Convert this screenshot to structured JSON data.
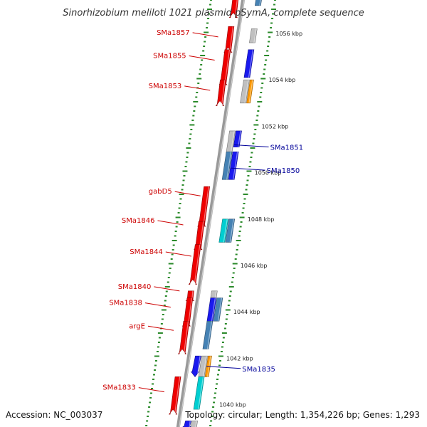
{
  "title": "Sinorhizobium meliloti 1021 plasmid pSymA, complete sequence",
  "footer": {
    "accession": "Accession: NC_003037",
    "topology": "Topology: circular; Length: 1,354,226 bp; Genes: 1,293"
  },
  "colors": {
    "forward_label": "#cc0000",
    "reverse_label": "#000099",
    "tick": "#2a8a2a",
    "backbone": "#999999",
    "red": "#ee0000",
    "blue": "#1a1aee",
    "steel": "#4682b4",
    "gray": "#c0c0c0",
    "cyan": "#00ced1",
    "orange": "#ff9900"
  },
  "ruler": [
    {
      "kbp": 1056,
      "label": "1056 kbp"
    },
    {
      "kbp": 1054,
      "label": "1054 kbp"
    },
    {
      "kbp": 1052,
      "label": "1052 kbp"
    },
    {
      "kbp": 1050,
      "label": "1050 kbp"
    },
    {
      "kbp": 1048,
      "label": "1048 kbp"
    },
    {
      "kbp": 1046,
      "label": "1046 kbp"
    },
    {
      "kbp": 1044,
      "label": "1044 kbp"
    },
    {
      "kbp": 1042,
      "label": "1042 kbp"
    },
    {
      "kbp": 1040,
      "label": "1040 kbp"
    }
  ],
  "genes": [
    {
      "strand": "+",
      "start": 1057.6,
      "end": 1056.9,
      "color": "red",
      "track": 0,
      "label": ""
    },
    {
      "strand": "-",
      "start": 1057.5,
      "end": 1057.2,
      "color": "steel",
      "track": 1,
      "label": ""
    },
    {
      "strand": "+",
      "start": 1056.3,
      "end": 1055.4,
      "color": "red",
      "track": 0,
      "label": ""
    },
    {
      "strand": "-",
      "start": 1056.2,
      "end": 1055.6,
      "color": "gray",
      "track": 1,
      "label": "SMa1857",
      "labelKbp": 1055.85
    },
    {
      "strand": "+",
      "start": 1055.3,
      "end": 1054.0,
      "color": "red",
      "track": 0,
      "label": ""
    },
    {
      "strand": "-",
      "start": 1055.3,
      "end": 1054.1,
      "color": "blue",
      "track": 1,
      "label": "SMa1855",
      "labelKbp": 1054.85
    },
    {
      "strand": "+",
      "start": 1054.0,
      "end": 1053.1,
      "color": "red",
      "track": 0,
      "label": ""
    },
    {
      "strand": "-",
      "start": 1054.0,
      "end": 1053.0,
      "color": "gray",
      "track": 1,
      "label": "SMa1853",
      "labelKbp": 1053.55
    },
    {
      "strand": "-",
      "start": 1054.0,
      "end": 1053.0,
      "color": "orange",
      "track": 2,
      "label": ""
    },
    {
      "strand": "-",
      "start": 1051.8,
      "end": 1050.8,
      "color": "gray",
      "track": 0,
      "label": "SMa1851",
      "labelKbp": 1051.2,
      "labelSide": "right"
    },
    {
      "strand": "-",
      "start": 1051.8,
      "end": 1051.1,
      "color": "blue",
      "track": 1,
      "label": ""
    },
    {
      "strand": "-",
      "start": 1050.9,
      "end": 1049.7,
      "color": "steel",
      "track": 0,
      "label": "SMa1850",
      "labelKbp": 1050.2,
      "labelSide": "right"
    },
    {
      "strand": "-",
      "start": 1050.9,
      "end": 1049.7,
      "color": "blue",
      "track": 1,
      "label": ""
    },
    {
      "strand": "+",
      "start": 1049.4,
      "end": 1047.9,
      "color": "red",
      "track": 0,
      "label": "gabD5",
      "labelKbp": 1049.0
    },
    {
      "strand": "+",
      "start": 1047.9,
      "end": 1046.9,
      "color": "red",
      "track": 0,
      "label": ""
    },
    {
      "strand": "-",
      "start": 1048.0,
      "end": 1047.0,
      "color": "cyan",
      "track": 1,
      "label": ""
    },
    {
      "strand": "-",
      "start": 1048.0,
      "end": 1047.0,
      "color": "steel",
      "track": 2,
      "label": "SMa1846",
      "labelKbp": 1047.75
    },
    {
      "strand": "+",
      "start": 1046.9,
      "end": 1045.4,
      "color": "red",
      "track": 0,
      "label": "SMa1844",
      "labelKbp": 1046.4
    },
    {
      "strand": "+",
      "start": 1044.9,
      "end": 1044.6,
      "color": "red",
      "track": 0,
      "label": ""
    },
    {
      "strand": "-",
      "start": 1044.9,
      "end": 1044.6,
      "color": "gray",
      "track": 1,
      "label": "SMa1840",
      "labelKbp": 1044.9
    },
    {
      "strand": "+",
      "start": 1044.6,
      "end": 1043.6,
      "color": "red",
      "track": 0,
      "label": ""
    },
    {
      "strand": "-",
      "start": 1044.6,
      "end": 1043.6,
      "color": "blue",
      "track": 1,
      "label": ""
    },
    {
      "strand": "-",
      "start": 1044.6,
      "end": 1043.6,
      "color": "steel",
      "track": 2,
      "label": "SMa1838",
      "labelKbp": 1044.2
    },
    {
      "strand": "+",
      "start": 1043.6,
      "end": 1042.4,
      "color": "red",
      "track": 0,
      "label": ""
    },
    {
      "strand": "-",
      "start": 1043.6,
      "end": 1042.4,
      "color": "steel",
      "track": 1,
      "label": "argE",
      "labelKbp": 1043.2
    },
    {
      "strand": "-",
      "start": 1042.1,
      "end": 1041.2,
      "color": "blue",
      "track": 0,
      "label": ""
    },
    {
      "strand": "-",
      "start": 1042.1,
      "end": 1041.2,
      "color": "gray",
      "track": 1,
      "label": "SMa1835",
      "labelKbp": 1041.65,
      "labelSide": "right"
    },
    {
      "strand": "-",
      "start": 1042.1,
      "end": 1041.2,
      "color": "orange",
      "track": 2,
      "label": ""
    },
    {
      "strand": "+",
      "start": 1041.2,
      "end": 1039.8,
      "color": "red",
      "track": 0,
      "label": ""
    },
    {
      "strand": "-",
      "start": 1041.2,
      "end": 1039.8,
      "color": "cyan",
      "track": 1,
      "label": "SMa1833",
      "labelKbp": 1040.55
    },
    {
      "strand": "-",
      "start": 1039.3,
      "end": 1038.9,
      "color": "blue",
      "track": 0,
      "label": ""
    },
    {
      "strand": "-",
      "start": 1039.3,
      "end": 1038.9,
      "color": "gray",
      "track": 1,
      "label": ""
    }
  ]
}
